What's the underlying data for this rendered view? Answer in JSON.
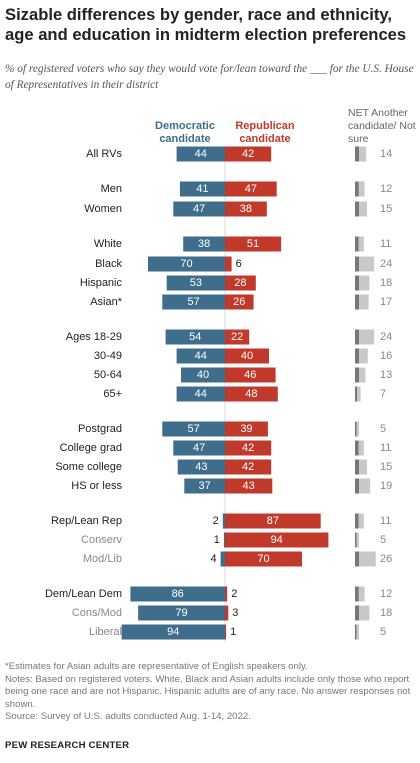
{
  "title": "Sizable differences by gender, race and ethnicity, age and education in midterm election preferences",
  "subtitle": "% of registered voters who say they would vote for/lean toward the ___ for the U.S. House of Representatives in their district",
  "headers": {
    "dem": "Democratic candidate",
    "rep": "Republican candidate",
    "other": "NET Another candidate/ Not sure"
  },
  "colors": {
    "dem": "#3f6e8c",
    "rep": "#c0392b",
    "other_dark": "#777777",
    "other_light": "#c8c8c8"
  },
  "chart_data": {
    "type": "bar",
    "title": "Sizable differences by gender, race and ethnicity, age and education in midterm election preferences",
    "series": [
      {
        "name": "Democratic candidate",
        "color": "#3f6e8c"
      },
      {
        "name": "Republican candidate",
        "color": "#c0392b"
      },
      {
        "name": "NET Another candidate/ Not sure",
        "color": "#c8c8c8"
      }
    ],
    "rows": [
      {
        "label": "All RVs",
        "dem": 44,
        "rep": 42,
        "other": 14,
        "sub": false
      },
      {
        "label": "Men",
        "dem": 41,
        "rep": 47,
        "other": 12,
        "sub": false
      },
      {
        "label": "Women",
        "dem": 47,
        "rep": 38,
        "other": 15,
        "sub": false
      },
      {
        "label": "White",
        "dem": 38,
        "rep": 51,
        "other": 11,
        "sub": false
      },
      {
        "label": "Black",
        "dem": 70,
        "rep": 6,
        "other": 24,
        "sub": false
      },
      {
        "label": "Hispanic",
        "dem": 53,
        "rep": 28,
        "other": 18,
        "sub": false
      },
      {
        "label": "Asian*",
        "dem": 57,
        "rep": 26,
        "other": 17,
        "sub": false
      },
      {
        "label": "Ages 18-29",
        "dem": 54,
        "rep": 22,
        "other": 24,
        "sub": false
      },
      {
        "label": "30-49",
        "dem": 44,
        "rep": 40,
        "other": 16,
        "sub": false
      },
      {
        "label": "50-64",
        "dem": 40,
        "rep": 46,
        "other": 13,
        "sub": false
      },
      {
        "label": "65+",
        "dem": 44,
        "rep": 48,
        "other": 7,
        "sub": false
      },
      {
        "label": "Postgrad",
        "dem": 57,
        "rep": 39,
        "other": 5,
        "sub": false
      },
      {
        "label": "College grad",
        "dem": 47,
        "rep": 42,
        "other": 11,
        "sub": false
      },
      {
        "label": "Some college",
        "dem": 43,
        "rep": 42,
        "other": 15,
        "sub": false
      },
      {
        "label": "HS or less",
        "dem": 37,
        "rep": 43,
        "other": 19,
        "sub": false
      },
      {
        "label": "Rep/Lean Rep",
        "dem": 2,
        "rep": 87,
        "other": 11,
        "sub": false
      },
      {
        "label": "Conserv",
        "dem": 1,
        "rep": 94,
        "other": 5,
        "sub": true
      },
      {
        "label": "Mod/Lib",
        "dem": 4,
        "rep": 70,
        "other": 26,
        "sub": true
      },
      {
        "label": "Dem/Lean Dem",
        "dem": 86,
        "rep": 2,
        "other": 12,
        "sub": false
      },
      {
        "label": "Cons/Mod",
        "dem": 79,
        "rep": 3,
        "other": 18,
        "sub": true
      },
      {
        "label": "Liberal",
        "dem": 94,
        "rep": 1,
        "other": 5,
        "sub": true
      }
    ]
  },
  "notes": {
    "asterisk": "*Estimates for Asian adults are representative of English speakers only.",
    "notes": "Notes: Based on registered voters. White, Black and Asian adults include only those who report being one race and are not Hispanic. Hispanic adults are of any race. No answer responses not shown.",
    "source": "Source: Survey of U.S. adults conducted Aug. 1-14, 2022."
  },
  "org": "PEW RESEARCH CENTER"
}
